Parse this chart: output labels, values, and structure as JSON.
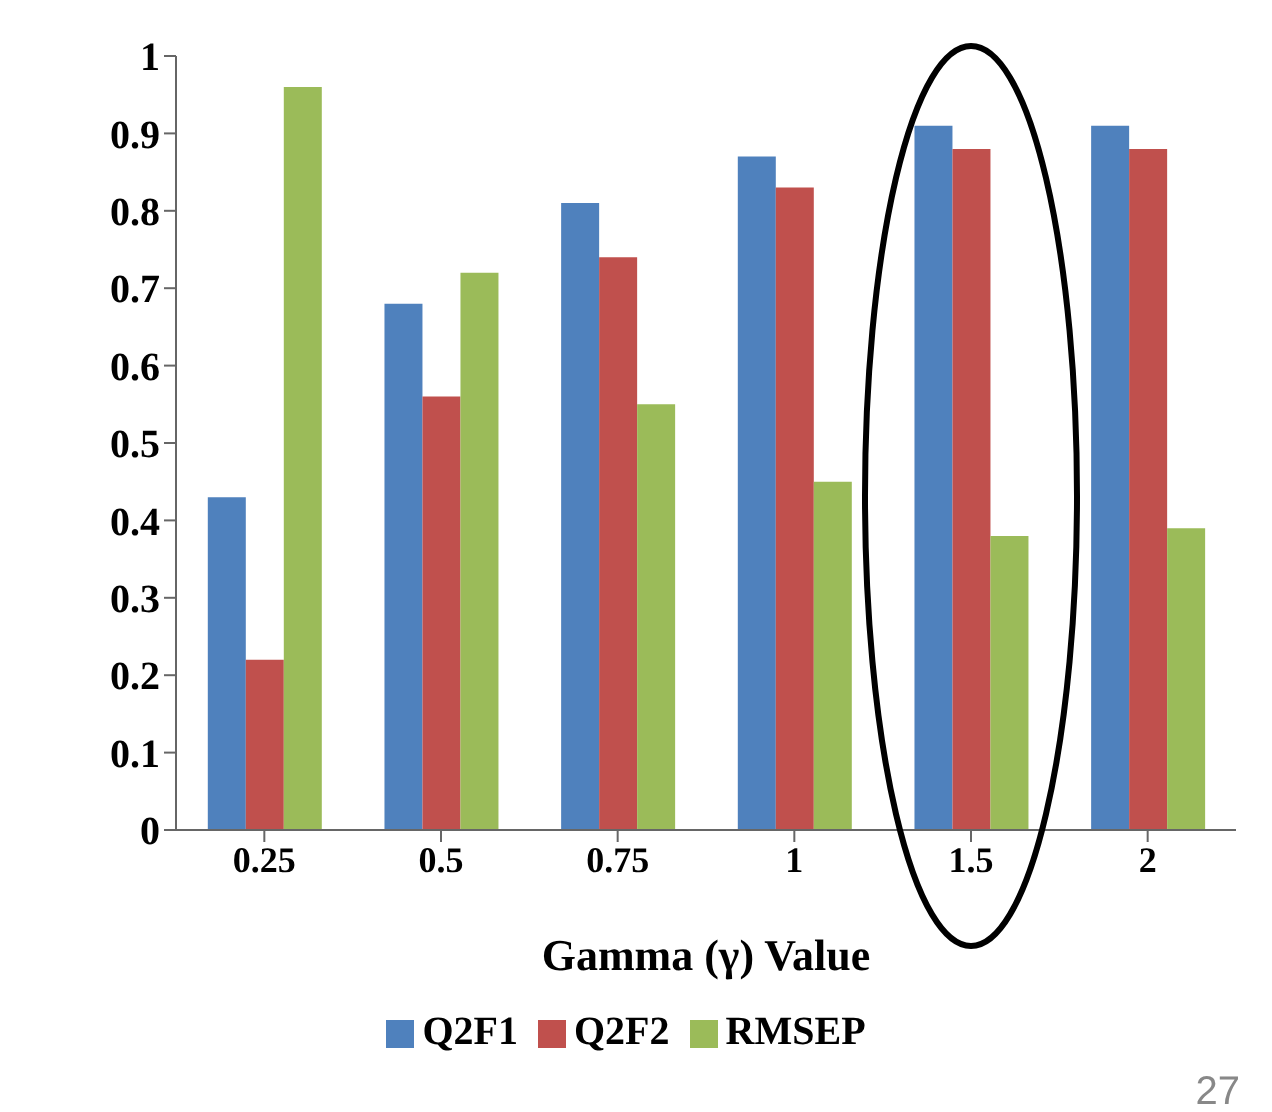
{
  "chart_data": {
    "type": "bar",
    "xlabel": "Gamma (γ) Value",
    "categories": [
      "0.25",
      "0.5",
      "0.75",
      "1",
      "1.5",
      "2"
    ],
    "series": [
      {
        "name": "Q2F1",
        "color": "#4f81bd",
        "values": [
          0.43,
          0.68,
          0.81,
          0.87,
          0.91,
          0.91
        ]
      },
      {
        "name": "Q2F2",
        "color": "#c0504d",
        "values": [
          0.22,
          0.56,
          0.74,
          0.83,
          0.88,
          0.88
        ]
      },
      {
        "name": "RMSEP",
        "color": "#9bbb59",
        "values": [
          0.96,
          0.72,
          0.55,
          0.45,
          0.38,
          0.39
        ]
      }
    ],
    "ylim": [
      0,
      1
    ],
    "yticks": [
      0,
      0.1,
      0.2,
      0.3,
      0.4,
      0.5,
      0.6,
      0.7,
      0.8,
      0.9,
      1
    ],
    "grid": false,
    "legend": "bottom",
    "annotations": [
      "27"
    ]
  }
}
